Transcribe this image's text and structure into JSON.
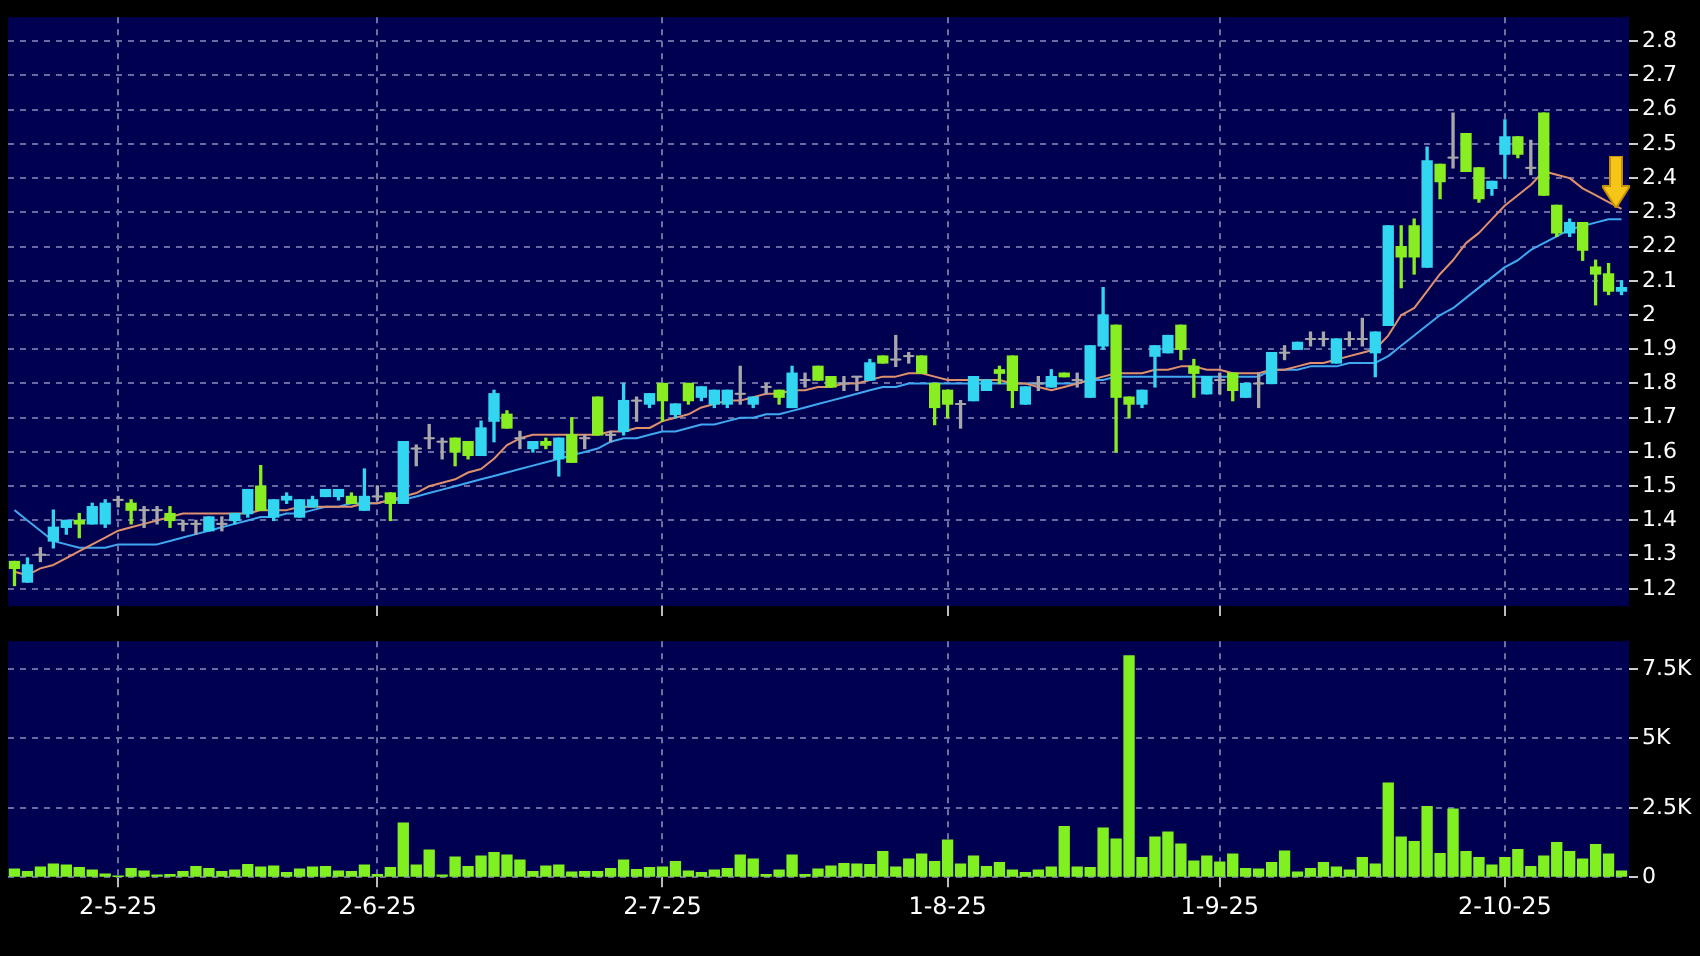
{
  "chart_data": [
    {
      "type": "candlestick",
      "tick_labels": "y",
      "grid": true,
      "marker": "none",
      "legend": false,
      "categories": [
        null,
        null,
        null,
        null,
        null,
        null,
        null,
        null,
        null,
        null,
        null,
        null,
        null,
        null,
        null,
        null,
        null,
        null,
        null,
        null,
        null,
        null,
        null,
        null,
        null,
        null,
        null,
        null,
        null,
        null,
        null,
        null,
        null,
        null,
        null,
        null,
        null,
        null,
        null,
        null,
        null,
        null,
        null,
        null,
        null,
        null,
        null,
        null,
        null,
        null,
        null,
        null,
        null,
        null,
        null,
        null,
        null,
        null,
        null,
        null,
        null,
        null,
        null,
        null,
        null,
        null,
        null,
        null,
        null,
        null,
        null,
        null,
        null,
        null,
        null,
        null,
        null,
        null,
        null,
        null,
        null,
        null,
        null,
        null,
        null,
        null,
        null,
        null,
        null,
        null,
        null,
        null,
        null,
        null,
        null,
        null,
        null,
        null,
        null,
        null,
        null,
        null,
        null,
        null,
        null,
        null,
        null,
        null,
        null,
        null,
        null,
        null,
        null,
        null,
        null,
        null,
        null,
        null,
        null,
        null,
        null,
        null,
        null,
        null,
        null
      ],
      "ohlc": [
        [
          1.28,
          1.28,
          1.21,
          1.26
        ],
        [
          1.22,
          1.29,
          1.22,
          1.27
        ],
        [
          1.3,
          1.32,
          1.28,
          1.3
        ],
        [
          1.34,
          1.43,
          1.32,
          1.38
        ],
        [
          1.38,
          1.4,
          1.36,
          1.4
        ],
        [
          1.4,
          1.42,
          1.35,
          1.39
        ],
        [
          1.39,
          1.45,
          1.39,
          1.44
        ],
        [
          1.39,
          1.46,
          1.38,
          1.45
        ],
        [
          1.46,
          1.47,
          1.44,
          1.46
        ],
        [
          1.45,
          1.46,
          1.39,
          1.43
        ],
        [
          1.43,
          1.44,
          1.38,
          1.43
        ],
        [
          1.43,
          1.44,
          1.39,
          1.43
        ],
        [
          1.42,
          1.44,
          1.38,
          1.4
        ],
        [
          1.39,
          1.4,
          1.37,
          1.39
        ],
        [
          1.39,
          1.4,
          1.36,
          1.39
        ],
        [
          1.37,
          1.41,
          1.37,
          1.41
        ],
        [
          1.39,
          1.41,
          1.37,
          1.39
        ],
        [
          1.4,
          1.42,
          1.39,
          1.42
        ],
        [
          1.42,
          1.49,
          1.41,
          1.49
        ],
        [
          1.5,
          1.56,
          1.43,
          1.43
        ],
        [
          1.41,
          1.46,
          1.4,
          1.46
        ],
        [
          1.46,
          1.48,
          1.45,
          1.47
        ],
        [
          1.41,
          1.46,
          1.41,
          1.46
        ],
        [
          1.44,
          1.47,
          1.44,
          1.46
        ],
        [
          1.47,
          1.49,
          1.47,
          1.49
        ],
        [
          1.47,
          1.49,
          1.46,
          1.49
        ],
        [
          1.47,
          1.48,
          1.45,
          1.45
        ],
        [
          1.43,
          1.55,
          1.43,
          1.47
        ],
        [
          1.47,
          1.5,
          1.46,
          1.47
        ],
        [
          1.48,
          1.48,
          1.4,
          1.45
        ],
        [
          1.45,
          1.63,
          1.45,
          1.63
        ],
        [
          1.61,
          1.62,
          1.56,
          1.61
        ],
        [
          1.64,
          1.68,
          1.61,
          1.64
        ],
        [
          1.63,
          1.64,
          1.58,
          1.63
        ],
        [
          1.64,
          1.64,
          1.56,
          1.6
        ],
        [
          1.63,
          1.63,
          1.58,
          1.59
        ],
        [
          1.59,
          1.69,
          1.59,
          1.67
        ],
        [
          1.69,
          1.78,
          1.63,
          1.77
        ],
        [
          1.71,
          1.72,
          1.67,
          1.67
        ],
        [
          1.64,
          1.66,
          1.61,
          1.64
        ],
        [
          1.61,
          1.63,
          1.6,
          1.63
        ],
        [
          1.63,
          1.64,
          1.61,
          1.62
        ],
        [
          1.58,
          1.64,
          1.53,
          1.64
        ],
        [
          1.65,
          1.7,
          1.57,
          1.57
        ],
        [
          1.64,
          1.65,
          1.61,
          1.64
        ],
        [
          1.76,
          1.76,
          1.65,
          1.65
        ],
        [
          1.65,
          1.66,
          1.63,
          1.65
        ],
        [
          1.66,
          1.8,
          1.65,
          1.75
        ],
        [
          1.75,
          1.76,
          1.69,
          1.75
        ],
        [
          1.74,
          1.77,
          1.73,
          1.77
        ],
        [
          1.8,
          1.8,
          1.69,
          1.75
        ],
        [
          1.71,
          1.74,
          1.7,
          1.74
        ],
        [
          1.8,
          1.8,
          1.74,
          1.75
        ],
        [
          1.76,
          1.79,
          1.75,
          1.79
        ],
        [
          1.74,
          1.78,
          1.73,
          1.78
        ],
        [
          1.74,
          1.78,
          1.73,
          1.78
        ],
        [
          1.77,
          1.85,
          1.74,
          1.77
        ],
        [
          1.74,
          1.76,
          1.73,
          1.76
        ],
        [
          1.79,
          1.8,
          1.77,
          1.79
        ],
        [
          1.78,
          1.78,
          1.74,
          1.76
        ],
        [
          1.73,
          1.85,
          1.73,
          1.83
        ],
        [
          1.81,
          1.83,
          1.79,
          1.81
        ],
        [
          1.85,
          1.85,
          1.81,
          1.81
        ],
        [
          1.82,
          1.82,
          1.79,
          1.79
        ],
        [
          1.8,
          1.82,
          1.78,
          1.8
        ],
        [
          1.82,
          1.82,
          1.78,
          1.82
        ],
        [
          1.81,
          1.87,
          1.81,
          1.86
        ],
        [
          1.88,
          1.88,
          1.86,
          1.86
        ],
        [
          1.87,
          1.94,
          1.85,
          1.87
        ],
        [
          1.88,
          1.89,
          1.86,
          1.88
        ],
        [
          1.88,
          1.88,
          1.83,
          1.83
        ],
        [
          1.8,
          1.8,
          1.68,
          1.73
        ],
        [
          1.78,
          1.78,
          1.7,
          1.74
        ],
        [
          1.74,
          1.75,
          1.67,
          1.74
        ],
        [
          1.75,
          1.82,
          1.75,
          1.82
        ],
        [
          1.78,
          1.81,
          1.78,
          1.81
        ],
        [
          1.84,
          1.85,
          1.8,
          1.83
        ],
        [
          1.88,
          1.88,
          1.73,
          1.78
        ],
        [
          1.74,
          1.79,
          1.74,
          1.79
        ],
        [
          1.8,
          1.82,
          1.78,
          1.8
        ],
        [
          1.79,
          1.84,
          1.79,
          1.82
        ],
        [
          1.83,
          1.83,
          1.82,
          1.82
        ],
        [
          1.81,
          1.83,
          1.79,
          1.81
        ],
        [
          1.76,
          1.91,
          1.76,
          1.91
        ],
        [
          1.91,
          2.08,
          1.9,
          2.0
        ],
        [
          1.97,
          1.97,
          1.6,
          1.76
        ],
        [
          1.76,
          1.76,
          1.7,
          1.74
        ],
        [
          1.74,
          1.78,
          1.73,
          1.78
        ],
        [
          1.88,
          1.91,
          1.79,
          1.91
        ],
        [
          1.89,
          1.94,
          1.89,
          1.94
        ],
        [
          1.97,
          1.97,
          1.87,
          1.9
        ],
        [
          1.85,
          1.87,
          1.76,
          1.83
        ],
        [
          1.77,
          1.82,
          1.77,
          1.82
        ],
        [
          1.81,
          1.83,
          1.77,
          1.81
        ],
        [
          1.83,
          1.83,
          1.75,
          1.78
        ],
        [
          1.76,
          1.8,
          1.76,
          1.8
        ],
        [
          1.8,
          1.83,
          1.73,
          1.8
        ],
        [
          1.8,
          1.89,
          1.8,
          1.89
        ],
        [
          1.89,
          1.91,
          1.87,
          1.89
        ],
        [
          1.9,
          1.92,
          1.9,
          1.92
        ],
        [
          1.93,
          1.95,
          1.91,
          1.93
        ],
        [
          1.93,
          1.95,
          1.91,
          1.93
        ],
        [
          1.86,
          1.93,
          1.86,
          1.93
        ],
        [
          1.93,
          1.95,
          1.91,
          1.93
        ],
        [
          1.93,
          1.99,
          1.91,
          1.93
        ],
        [
          1.89,
          1.95,
          1.82,
          1.95
        ],
        [
          1.97,
          2.26,
          1.97,
          2.26
        ],
        [
          2.2,
          2.26,
          2.08,
          2.17
        ],
        [
          2.26,
          2.28,
          2.12,
          2.17
        ],
        [
          2.14,
          2.49,
          2.14,
          2.45
        ],
        [
          2.44,
          2.44,
          2.34,
          2.39
        ],
        [
          2.46,
          2.59,
          2.43,
          2.46
        ],
        [
          2.53,
          2.53,
          2.42,
          2.42
        ],
        [
          2.43,
          2.43,
          2.33,
          2.34
        ],
        [
          2.37,
          2.39,
          2.35,
          2.39
        ],
        [
          2.47,
          2.57,
          2.4,
          2.52
        ],
        [
          2.52,
          2.52,
          2.46,
          2.47
        ],
        [
          2.43,
          2.51,
          2.41,
          2.43
        ],
        [
          2.59,
          2.59,
          2.35,
          2.35
        ],
        [
          2.32,
          2.32,
          2.23,
          2.24
        ],
        [
          2.24,
          2.28,
          2.23,
          2.27
        ],
        [
          2.27,
          2.27,
          2.16,
          2.19
        ],
        [
          2.14,
          2.16,
          2.03,
          2.12
        ],
        [
          2.12,
          2.15,
          2.06,
          2.07
        ],
        [
          2.07,
          2.1,
          2.06,
          2.08
        ]
      ],
      "colors": [
        "#88ee22",
        "#33d6f0",
        "#a8a8a8",
        "#33d6f0",
        "#33d6f0",
        "#88ee22",
        "#33d6f0",
        "#33d6f0",
        "#a8a8a8",
        "#88ee22",
        "#a8a8a8",
        "#a8a8a8",
        "#88ee22",
        "#a8a8a8",
        "#a8a8a8",
        "#33d6f0",
        "#a8a8a8",
        "#33d6f0",
        "#33d6f0",
        "#88ee22",
        "#33d6f0",
        "#33d6f0",
        "#33d6f0",
        "#33d6f0",
        "#33d6f0",
        "#33d6f0",
        "#88ee22",
        "#33d6f0",
        "#a8a8a8",
        "#88ee22",
        "#33d6f0",
        "#a8a8a8",
        "#a8a8a8",
        "#a8a8a8",
        "#88ee22",
        "#88ee22",
        "#33d6f0",
        "#33d6f0",
        "#88ee22",
        "#a8a8a8",
        "#33d6f0",
        "#88ee22",
        "#33d6f0",
        "#88ee22",
        "#a8a8a8",
        "#88ee22",
        "#a8a8a8",
        "#33d6f0",
        "#a8a8a8",
        "#33d6f0",
        "#88ee22",
        "#33d6f0",
        "#88ee22",
        "#33d6f0",
        "#33d6f0",
        "#33d6f0",
        "#a8a8a8",
        "#33d6f0",
        "#a8a8a8",
        "#88ee22",
        "#33d6f0",
        "#a8a8a8",
        "#88ee22",
        "#88ee22",
        "#a8a8a8",
        "#a8a8a8",
        "#33d6f0",
        "#88ee22",
        "#a8a8a8",
        "#a8a8a8",
        "#88ee22",
        "#88ee22",
        "#88ee22",
        "#a8a8a8",
        "#33d6f0",
        "#33d6f0",
        "#88ee22",
        "#88ee22",
        "#33d6f0",
        "#a8a8a8",
        "#33d6f0",
        "#88ee22",
        "#a8a8a8",
        "#33d6f0",
        "#33d6f0",
        "#88ee22",
        "#88ee22",
        "#33d6f0",
        "#33d6f0",
        "#33d6f0",
        "#88ee22",
        "#88ee22",
        "#33d6f0",
        "#a8a8a8",
        "#88ee22",
        "#33d6f0",
        "#a8a8a8",
        "#33d6f0",
        "#a8a8a8",
        "#33d6f0",
        "#a8a8a8",
        "#a8a8a8",
        "#33d6f0",
        "#a8a8a8",
        "#a8a8a8",
        "#33d6f0",
        "#33d6f0",
        "#88ee22",
        "#88ee22",
        "#33d6f0",
        "#88ee22",
        "#a8a8a8",
        "#88ee22",
        "#88ee22",
        "#33d6f0",
        "#33d6f0",
        "#88ee22",
        "#a8a8a8",
        "#88ee22",
        "#88ee22",
        "#33d6f0",
        "#88ee22",
        "#88ee22",
        "#88ee22",
        "#33d6f0"
      ],
      "series": [
        {
          "type": "line",
          "color": "#e0906a",
          "values": [
            1.25,
            1.24,
            1.26,
            1.27,
            1.29,
            1.31,
            1.33,
            1.35,
            1.37,
            1.38,
            1.39,
            1.4,
            1.41,
            1.42,
            1.42,
            1.42,
            1.42,
            1.42,
            1.42,
            1.43,
            1.43,
            1.43,
            1.44,
            1.44,
            1.44,
            1.44,
            1.44,
            1.45,
            1.45,
            1.46,
            1.47,
            1.48,
            1.5,
            1.51,
            1.52,
            1.54,
            1.55,
            1.58,
            1.62,
            1.64,
            1.65,
            1.65,
            1.65,
            1.65,
            1.65,
            1.65,
            1.66,
            1.66,
            1.67,
            1.67,
            1.69,
            1.7,
            1.71,
            1.73,
            1.74,
            1.75,
            1.75,
            1.76,
            1.77,
            1.77,
            1.78,
            1.78,
            1.79,
            1.79,
            1.8,
            1.8,
            1.81,
            1.82,
            1.82,
            1.83,
            1.83,
            1.82,
            1.81,
            1.81,
            1.81,
            1.81,
            1.81,
            1.8,
            1.8,
            1.79,
            1.78,
            1.79,
            1.8,
            1.81,
            1.82,
            1.83,
            1.83,
            1.83,
            1.84,
            1.84,
            1.85,
            1.85,
            1.84,
            1.84,
            1.83,
            1.83,
            1.83,
            1.84,
            1.84,
            1.85,
            1.86,
            1.86,
            1.87,
            1.88,
            1.89,
            1.9,
            1.94,
            2.0,
            2.02,
            2.07,
            2.12,
            2.16,
            2.21,
            2.24,
            2.28,
            2.32,
            2.35,
            2.38,
            2.42,
            2.41,
            2.4,
            2.37,
            2.35,
            2.33,
            2.31
          ]
        },
        {
          "type": "line",
          "color": "#40a8f0",
          "values": [
            1.43,
            1.4,
            1.37,
            1.34,
            1.33,
            1.32,
            1.32,
            1.32,
            1.33,
            1.33,
            1.33,
            1.33,
            1.34,
            1.35,
            1.36,
            1.37,
            1.38,
            1.39,
            1.4,
            1.41,
            1.41,
            1.42,
            1.42,
            1.43,
            1.44,
            1.44,
            1.45,
            1.45,
            1.45,
            1.46,
            1.46,
            1.47,
            1.48,
            1.49,
            1.5,
            1.51,
            1.52,
            1.53,
            1.54,
            1.55,
            1.56,
            1.57,
            1.58,
            1.59,
            1.6,
            1.61,
            1.63,
            1.64,
            1.64,
            1.65,
            1.66,
            1.66,
            1.67,
            1.68,
            1.68,
            1.69,
            1.7,
            1.7,
            1.71,
            1.71,
            1.72,
            1.73,
            1.74,
            1.75,
            1.76,
            1.77,
            1.78,
            1.79,
            1.79,
            1.8,
            1.8,
            1.8,
            1.8,
            1.8,
            1.8,
            1.8,
            1.8,
            1.8,
            1.8,
            1.8,
            1.8,
            1.8,
            1.8,
            1.81,
            1.81,
            1.82,
            1.82,
            1.82,
            1.82,
            1.82,
            1.82,
            1.82,
            1.82,
            1.82,
            1.82,
            1.82,
            1.82,
            1.84,
            1.84,
            1.84,
            1.85,
            1.85,
            1.85,
            1.86,
            1.86,
            1.86,
            1.88,
            1.91,
            1.94,
            1.97,
            2.0,
            2.02,
            2.05,
            2.08,
            2.11,
            2.14,
            2.16,
            2.19,
            2.21,
            2.23,
            2.25,
            2.26,
            2.27,
            2.28,
            2.28
          ]
        }
      ],
      "ylim": [
        1.15,
        2.87
      ],
      "yticks": [
        1.2,
        1.3,
        1.4,
        1.5,
        1.6,
        1.7,
        1.8,
        1.9,
        2,
        2.1,
        2.2,
        2.3,
        2.4,
        2.5,
        2.6,
        2.7,
        2.8
      ]
    },
    {
      "type": "bar",
      "grid": true,
      "legend": false,
      "color": "#80f020",
      "categories": [
        null,
        null,
        null,
        null,
        null,
        null,
        null,
        null,
        "2-5-25",
        null,
        null,
        null,
        null,
        null,
        null,
        null,
        null,
        null,
        null,
        null,
        null,
        null,
        null,
        null,
        null,
        null,
        null,
        null,
        "2-6-25",
        null,
        null,
        null,
        null,
        null,
        null,
        null,
        null,
        null,
        null,
        null,
        null,
        null,
        null,
        null,
        null,
        null,
        null,
        null,
        null,
        null,
        "2-7-25",
        null,
        null,
        null,
        null,
        null,
        null,
        null,
        null,
        null,
        null,
        null,
        null,
        null,
        null,
        null,
        null,
        null,
        null,
        null,
        null,
        null,
        "1-8-25",
        null,
        null,
        null,
        null,
        null,
        null,
        null,
        null,
        null,
        null,
        null,
        null,
        null,
        null,
        null,
        null,
        null,
        null,
        null,
        null,
        "1-9-25",
        null,
        null,
        null,
        null,
        null,
        null,
        null,
        null,
        null,
        null,
        null,
        null,
        null,
        null,
        null,
        null,
        null,
        null,
        null,
        null,
        null,
        "2-10-25",
        null,
        null,
        null,
        null,
        null,
        null,
        null,
        null,
        null
      ],
      "values": [
        290,
        200,
        360,
        470,
        430,
        340,
        250,
        110,
        30,
        310,
        220,
        70,
        90,
        200,
        380,
        310,
        200,
        250,
        450,
        360,
        400,
        160,
        290,
        360,
        380,
        220,
        200,
        430,
        90,
        340,
        1950,
        430,
        970,
        70,
        720,
        380,
        760,
        880,
        790,
        610,
        200,
        400,
        430,
        180,
        200,
        200,
        310,
        610,
        270,
        340,
        360,
        560,
        220,
        160,
        250,
        310,
        790,
        650,
        90,
        250,
        790,
        90,
        290,
        400,
        490,
        470,
        450,
        920,
        360,
        650,
        830,
        560,
        1330,
        470,
        760,
        380,
        520,
        250,
        160,
        250,
        360,
        1820,
        360,
        340,
        1770,
        1370,
        7970,
        700,
        1440,
        1620,
        1190,
        580,
        760,
        540,
        830,
        310,
        290,
        520,
        940,
        180,
        310,
        520,
        360,
        250,
        700,
        470,
        3390,
        1440,
        1280,
        2540,
        850,
        2450,
        920,
        700,
        430,
        700,
        990,
        380,
        760,
        1240,
        920,
        650,
        1170,
        830,
        220
      ],
      "ylim": [
        0,
        8500
      ],
      "yticks": [
        0,
        {
          "value": 2500,
          "label": "2.5K"
        },
        {
          "value": 5000,
          "label": "5K"
        },
        {
          "value": 7500,
          "label": "7.5K"
        }
      ]
    }
  ]
}
